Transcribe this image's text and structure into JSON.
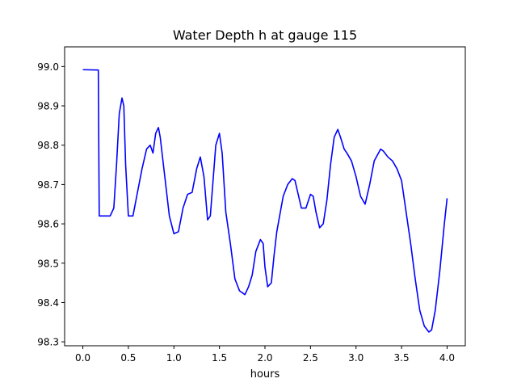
{
  "chart_data": {
    "type": "line",
    "title": "Water Depth h at gauge 115",
    "xlabel": "hours",
    "ylabel": "",
    "xlim": [
      -0.2,
      4.2
    ],
    "ylim": [
      98.29,
      99.05
    ],
    "xticks": [
      0.0,
      0.5,
      1.0,
      1.5,
      2.0,
      2.5,
      3.0,
      3.5,
      4.0
    ],
    "xtick_labels": [
      "0.0",
      "0.5",
      "1.0",
      "1.5",
      "2.0",
      "2.5",
      "3.0",
      "3.5",
      "4.0"
    ],
    "yticks": [
      98.3,
      98.4,
      98.5,
      98.6,
      98.7,
      98.8,
      98.9,
      99.0
    ],
    "ytick_labels": [
      "98.3",
      "98.4",
      "98.5",
      "98.6",
      "98.7",
      "98.8",
      "98.9",
      "99.0"
    ],
    "grid": false,
    "series": [
      {
        "color": "#0000ff",
        "x": [
          0.0,
          0.17,
          0.18,
          0.2,
          0.3,
          0.34,
          0.37,
          0.4,
          0.43,
          0.45,
          0.47,
          0.5,
          0.55,
          0.6,
          0.65,
          0.7,
          0.74,
          0.77,
          0.8,
          0.83,
          0.85,
          0.9,
          0.95,
          1.0,
          1.05,
          1.1,
          1.15,
          1.2,
          1.25,
          1.29,
          1.33,
          1.37,
          1.4,
          1.43,
          1.46,
          1.5,
          1.53,
          1.57,
          1.62,
          1.67,
          1.72,
          1.78,
          1.82,
          1.86,
          1.9,
          1.95,
          1.98,
          2.0,
          2.03,
          2.07,
          2.1,
          2.13,
          2.2,
          2.25,
          2.3,
          2.33,
          2.36,
          2.4,
          2.45,
          2.5,
          2.53,
          2.56,
          2.6,
          2.64,
          2.68,
          2.72,
          2.76,
          2.8,
          2.83,
          2.87,
          2.9,
          2.95,
          3.0,
          3.05,
          3.1,
          3.15,
          3.2,
          3.27,
          3.3,
          3.35,
          3.4,
          3.45,
          3.5,
          3.55,
          3.6,
          3.65,
          3.7,
          3.75,
          3.8,
          3.83,
          3.87,
          3.92,
          3.97,
          4.0
        ],
        "y": [
          98.992,
          98.991,
          98.62,
          98.62,
          98.62,
          98.64,
          98.75,
          98.88,
          98.92,
          98.9,
          98.75,
          98.62,
          98.62,
          98.68,
          98.74,
          98.79,
          98.8,
          98.78,
          98.83,
          98.845,
          98.82,
          98.72,
          98.62,
          98.575,
          98.58,
          98.64,
          98.675,
          98.68,
          98.74,
          98.77,
          98.72,
          98.61,
          98.62,
          98.71,
          98.8,
          98.83,
          98.78,
          98.63,
          98.55,
          98.46,
          98.43,
          98.42,
          98.44,
          98.47,
          98.53,
          98.56,
          98.55,
          98.49,
          98.44,
          98.45,
          98.52,
          98.58,
          98.67,
          98.7,
          98.715,
          98.71,
          98.68,
          98.64,
          98.64,
          98.675,
          98.67,
          98.63,
          98.59,
          98.6,
          98.66,
          98.75,
          98.82,
          98.84,
          98.82,
          98.79,
          98.78,
          98.76,
          98.72,
          98.67,
          98.65,
          98.7,
          98.76,
          98.79,
          98.785,
          98.77,
          98.76,
          98.74,
          98.71,
          98.63,
          98.55,
          98.46,
          98.38,
          98.34,
          98.325,
          98.33,
          98.38,
          98.48,
          98.6,
          98.665
        ]
      }
    ]
  }
}
